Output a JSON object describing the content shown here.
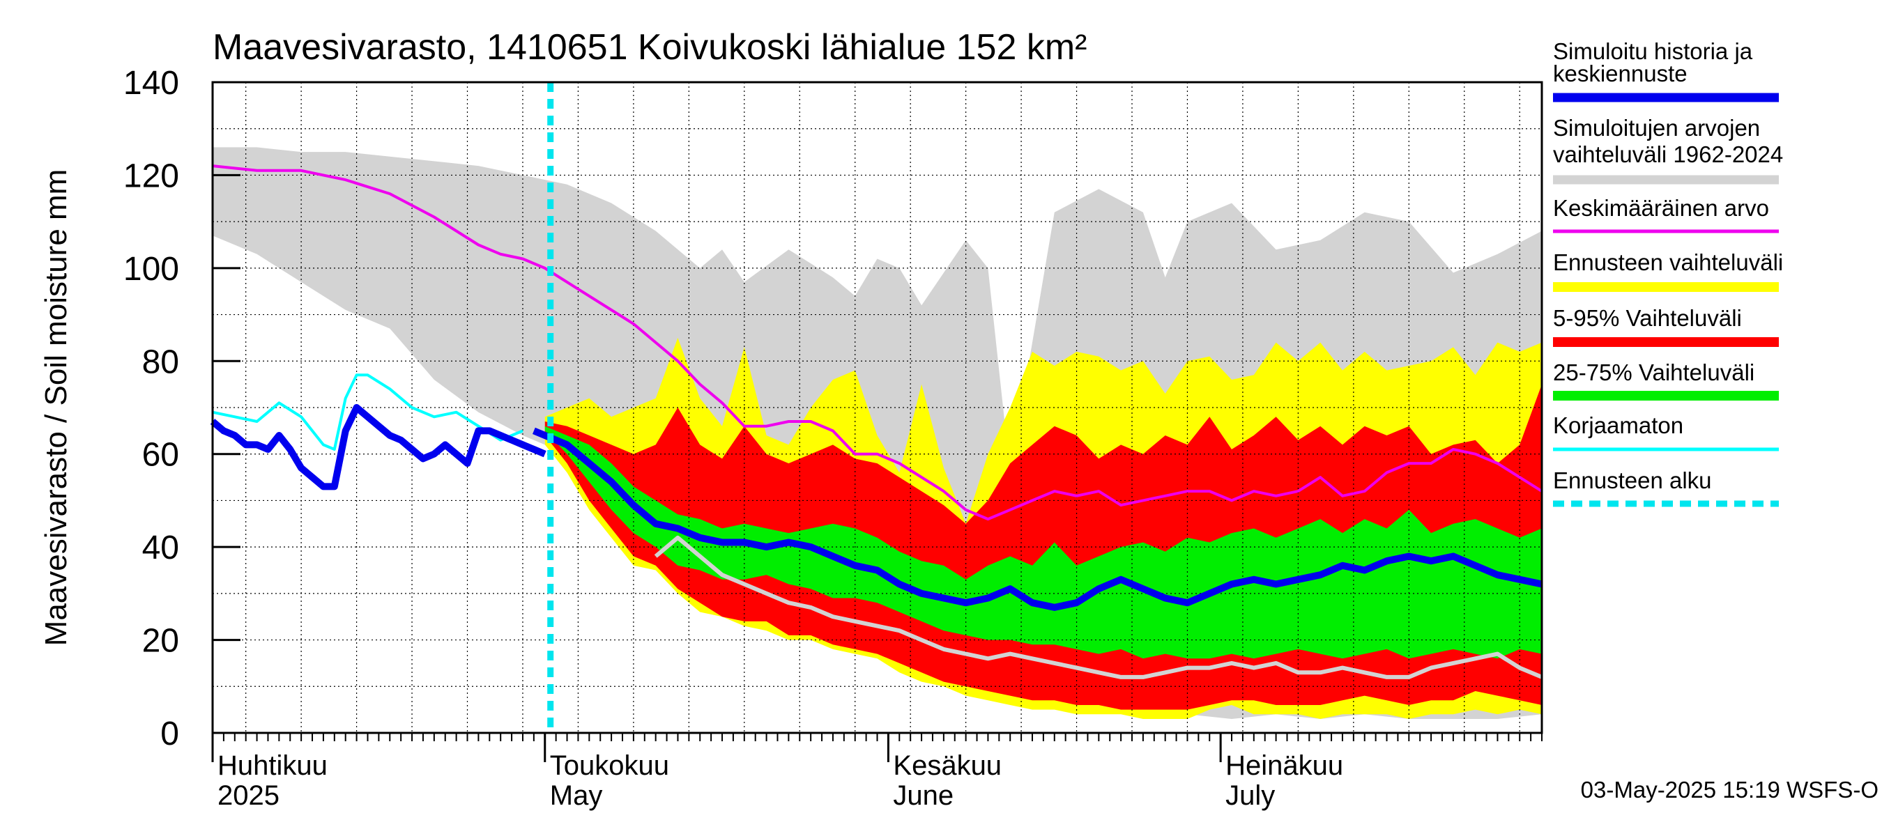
{
  "chart_data": {
    "type": "area",
    "title": "Maavesivarasto, 1410651 Koivukoski lähialue 152 km²",
    "ylabel": "Maavesivarasto / Soil moisture   mm",
    "xlabel": "",
    "ylim": [
      0,
      140
    ],
    "yticks": [
      "0",
      "20",
      "40",
      "60",
      "80",
      "100",
      "120",
      "140"
    ],
    "x_unit": "days since 2025-04-01",
    "xlim": [
      0,
      120
    ],
    "month_labels": [
      {
        "day": 0,
        "fi": "Huhtikuu",
        "en": "2025"
      },
      {
        "day": 30,
        "fi": "Toukokuu",
        "en": "May"
      },
      {
        "day": 61,
        "fi": "Kesäkuu",
        "en": "June"
      },
      {
        "day": 91,
        "fi": "Heinäkuu",
        "en": "July"
      }
    ],
    "forecast_start_day": 30.5,
    "timestamp": "03-May-2025 15:19 WSFS-O",
    "legend": [
      {
        "key": "sim",
        "label_line1": "Simuloitu historia ja",
        "label_line2": "keskiennuste",
        "color": "#0000ee"
      },
      {
        "key": "range",
        "label_line1": "Simuloitujen arvojen",
        "label_line2": "vaihteluväli 1962-2024",
        "color": "#d3d3d3"
      },
      {
        "key": "mean",
        "label_line1": "Keskimääräinen arvo",
        "label_line2": "",
        "color": "#ee00ee"
      },
      {
        "key": "ens",
        "label_line1": "Ennusteen vaihteluväli",
        "label_line2": "",
        "color": "#ffff00"
      },
      {
        "key": "p5_95",
        "label_line1": "5-95% Vaihteluväli",
        "label_line2": "",
        "color": "#ff0000"
      },
      {
        "key": "p25_75",
        "label_line1": "25-75% Vaihteluväli",
        "label_line2": "",
        "color": "#00ee00"
      },
      {
        "key": "raw",
        "label_line1": "Korjaamaton",
        "label_line2": "",
        "color": "#00ffff"
      },
      {
        "key": "start",
        "label_line1": "Ennusteen alku",
        "label_line2": "",
        "color": "#00e5ee"
      }
    ],
    "series": [
      {
        "name": "hist_range_upper",
        "x": [
          0,
          4,
          8,
          12,
          16,
          20,
          24,
          28,
          32,
          36,
          40,
          44,
          46,
          48,
          52,
          56,
          58,
          60,
          62,
          64,
          66,
          68,
          70,
          72,
          74,
          76,
          80,
          84,
          86,
          88,
          92,
          96,
          100,
          104,
          108,
          112,
          116,
          120
        ],
        "values": [
          126,
          126,
          125,
          125,
          124,
          123,
          122,
          120,
          118,
          114,
          108,
          100,
          104,
          97,
          104,
          98,
          94,
          102,
          100,
          92,
          99,
          106,
          100,
          56,
          84,
          112,
          117,
          112,
          98,
          110,
          114,
          104,
          106,
          112,
          110,
          99,
          103,
          108
        ]
      },
      {
        "name": "hist_range_lower",
        "x": [
          0,
          4,
          8,
          12,
          16,
          20,
          24,
          28,
          30,
          34,
          38,
          42,
          46,
          50,
          54,
          58,
          62,
          66,
          70,
          74,
          78,
          84,
          88,
          92,
          96,
          100,
          104,
          108,
          112,
          116,
          120
        ],
        "values": [
          107,
          103,
          97,
          91,
          87,
          76,
          69,
          64,
          62,
          55,
          46,
          38,
          34,
          31,
          26,
          22,
          19,
          15,
          12,
          9,
          7,
          5,
          4,
          3,
          4,
          3,
          4,
          3,
          3,
          3,
          4
        ]
      },
      {
        "name": "ens_upper",
        "x": [
          30,
          32,
          34,
          36,
          38,
          40,
          42,
          44,
          46,
          48,
          50,
          52,
          54,
          56,
          58,
          60,
          62,
          64,
          66,
          68,
          70,
          72,
          74,
          76,
          78,
          80,
          82,
          84,
          86,
          88,
          90,
          92,
          94,
          96,
          98,
          100,
          102,
          104,
          106,
          108,
          110,
          112,
          114,
          116,
          118,
          120
        ],
        "values": [
          68,
          70,
          72,
          68,
          70,
          72,
          85,
          72,
          66,
          83,
          64,
          62,
          70,
          76,
          78,
          64,
          56,
          75,
          57,
          45,
          60,
          70,
          82,
          79,
          82,
          81,
          78,
          80,
          73,
          80,
          81,
          76,
          77,
          84,
          80,
          84,
          78,
          82,
          78,
          79,
          80,
          83,
          77,
          84,
          82,
          84
        ]
      },
      {
        "name": "ens_lower",
        "x": [
          30,
          32,
          34,
          36,
          38,
          40,
          42,
          44,
          46,
          48,
          50,
          52,
          54,
          56,
          58,
          60,
          62,
          64,
          66,
          68,
          70,
          72,
          74,
          76,
          78,
          80,
          82,
          84,
          86,
          88,
          90,
          92,
          94,
          96,
          98,
          100,
          102,
          104,
          106,
          108,
          110,
          112,
          114,
          116,
          118,
          120
        ],
        "values": [
          62,
          56,
          48,
          42,
          36,
          35,
          30,
          26,
          25,
          23,
          22,
          20,
          20,
          18,
          17,
          16,
          13,
          11,
          10,
          8,
          7,
          6,
          5,
          5,
          4,
          4,
          4,
          3,
          3,
          3,
          5,
          6,
          4,
          4,
          4,
          3,
          4,
          4,
          4,
          3,
          4,
          4,
          5,
          4,
          5,
          4
        ]
      },
      {
        "name": "p5_95_upper",
        "x": [
          30,
          32,
          34,
          36,
          38,
          40,
          42,
          44,
          46,
          48,
          50,
          52,
          54,
          56,
          58,
          60,
          62,
          64,
          66,
          68,
          70,
          72,
          74,
          76,
          78,
          80,
          82,
          84,
          86,
          88,
          90,
          92,
          94,
          96,
          98,
          100,
          102,
          104,
          106,
          108,
          110,
          112,
          114,
          116,
          118,
          120
        ],
        "values": [
          67,
          66,
          64,
          62,
          60,
          62,
          70,
          62,
          59,
          66,
          60,
          58,
          60,
          62,
          59,
          58,
          55,
          52,
          49,
          45,
          50,
          58,
          62,
          66,
          64,
          59,
          62,
          60,
          64,
          62,
          68,
          61,
          64,
          68,
          63,
          66,
          62,
          66,
          64,
          66,
          60,
          62,
          63,
          58,
          62,
          75
        ]
      },
      {
        "name": "p5_95_lower",
        "x": [
          30,
          32,
          34,
          36,
          38,
          40,
          42,
          44,
          46,
          48,
          50,
          52,
          54,
          56,
          58,
          60,
          62,
          64,
          66,
          68,
          70,
          72,
          74,
          76,
          78,
          80,
          82,
          84,
          86,
          88,
          90,
          92,
          94,
          96,
          98,
          100,
          102,
          104,
          106,
          108,
          110,
          112,
          114,
          116,
          118,
          120
        ],
        "values": [
          64,
          58,
          50,
          44,
          38,
          36,
          31,
          28,
          25,
          24,
          24,
          21,
          21,
          19,
          18,
          17,
          15,
          13,
          11,
          10,
          9,
          8,
          7,
          7,
          6,
          6,
          5,
          5,
          5,
          5,
          6,
          7,
          7,
          6,
          6,
          6,
          7,
          8,
          7,
          6,
          7,
          7,
          9,
          8,
          7,
          6
        ]
      },
      {
        "name": "p25_75_upper",
        "x": [
          30,
          32,
          34,
          36,
          38,
          40,
          42,
          44,
          46,
          48,
          50,
          52,
          54,
          56,
          58,
          60,
          62,
          64,
          66,
          68,
          70,
          72,
          74,
          76,
          78,
          80,
          82,
          84,
          86,
          88,
          90,
          92,
          94,
          96,
          98,
          100,
          102,
          104,
          106,
          108,
          110,
          112,
          114,
          116,
          118,
          120
        ],
        "values": [
          66,
          64,
          62,
          58,
          53,
          50,
          47,
          46,
          44,
          45,
          44,
          43,
          44,
          45,
          44,
          42,
          39,
          37,
          36,
          33,
          36,
          38,
          36,
          41,
          36,
          38,
          40,
          41,
          39,
          42,
          41,
          43,
          44,
          42,
          44,
          46,
          43,
          46,
          44,
          48,
          43,
          45,
          46,
          44,
          42,
          44
        ]
      },
      {
        "name": "p25_75_lower",
        "x": [
          30,
          32,
          34,
          36,
          38,
          40,
          42,
          44,
          46,
          48,
          50,
          52,
          54,
          56,
          58,
          60,
          62,
          64,
          66,
          68,
          70,
          72,
          74,
          76,
          78,
          80,
          82,
          84,
          86,
          88,
          90,
          92,
          94,
          96,
          98,
          100,
          102,
          104,
          106,
          108,
          110,
          112,
          114,
          116,
          118,
          120
        ],
        "values": [
          65,
          60,
          54,
          48,
          43,
          40,
          36,
          35,
          33,
          33,
          34,
          32,
          31,
          29,
          29,
          28,
          26,
          24,
          22,
          21,
          20,
          20,
          19,
          19,
          18,
          17,
          18,
          16,
          17,
          16,
          16,
          17,
          16,
          17,
          18,
          17,
          16,
          17,
          18,
          16,
          17,
          18,
          17,
          16,
          18,
          17
        ]
      },
      {
        "name": "mean",
        "x": [
          0,
          4,
          8,
          12,
          16,
          20,
          24,
          26,
          28,
          30,
          34,
          38,
          40,
          42,
          44,
          46,
          48,
          50,
          52,
          54,
          56,
          58,
          60,
          62,
          64,
          66,
          68,
          70,
          72,
          74,
          76,
          78,
          80,
          82,
          84,
          86,
          88,
          90,
          92,
          94,
          96,
          98,
          100,
          102,
          104,
          106,
          108,
          110,
          112,
          114,
          116,
          118,
          120
        ],
        "values": [
          122,
          121,
          121,
          119,
          116,
          111,
          105,
          103,
          102,
          100,
          94,
          88,
          84,
          80,
          75,
          71,
          66,
          66,
          67,
          67,
          65,
          60,
          60,
          58,
          55,
          52,
          48,
          46,
          48,
          50,
          52,
          51,
          52,
          49,
          50,
          51,
          52,
          52,
          50,
          52,
          51,
          52,
          55,
          51,
          52,
          56,
          58,
          58,
          61,
          60,
          58,
          55,
          52
        ]
      },
      {
        "name": "sim_history",
        "x": [
          0,
          1,
          2,
          3,
          4,
          5,
          6,
          7,
          8,
          9,
          10,
          11,
          12,
          13,
          14,
          15,
          16,
          17,
          18,
          19,
          20,
          21,
          22,
          23,
          24,
          25,
          26,
          27,
          28,
          29,
          30
        ],
        "values": [
          67,
          65,
          64,
          62,
          62,
          61,
          64,
          61,
          57,
          55,
          53,
          53,
          65,
          70,
          68,
          66,
          64,
          63,
          61,
          59,
          60,
          62,
          60,
          58,
          65,
          65,
          64,
          63,
          62,
          61,
          60
        ]
      },
      {
        "name": "sim_median",
        "x": [
          29,
          30,
          32,
          34,
          36,
          38,
          40,
          42,
          44,
          46,
          48,
          50,
          52,
          54,
          56,
          58,
          60,
          62,
          64,
          66,
          68,
          70,
          72,
          74,
          76,
          78,
          80,
          82,
          84,
          86,
          88,
          90,
          92,
          94,
          96,
          98,
          100,
          102,
          104,
          106,
          108,
          110,
          112,
          114,
          116,
          118,
          120
        ],
        "values": [
          65,
          64,
          62,
          58,
          54,
          49,
          45,
          44,
          42,
          41,
          41,
          40,
          41,
          40,
          38,
          36,
          35,
          32,
          30,
          29,
          28,
          29,
          31,
          28,
          27,
          28,
          31,
          33,
          31,
          29,
          28,
          30,
          32,
          33,
          32,
          33,
          34,
          36,
          35,
          37,
          38,
          37,
          38,
          36,
          34,
          33,
          32
        ]
      },
      {
        "name": "raw_uncorrected",
        "x": [
          0,
          2,
          4,
          6,
          8,
          10,
          11,
          12,
          13,
          14,
          16,
          18,
          20,
          22,
          24,
          26,
          28
        ],
        "values": [
          69,
          68,
          67,
          71,
          68,
          62,
          61,
          72,
          77,
          77,
          74,
          70,
          68,
          69,
          66,
          63,
          65
        ]
      },
      {
        "name": "median_low_gray",
        "x": [
          40,
          42,
          44,
          46,
          48,
          50,
          52,
          54,
          56,
          58,
          60,
          62,
          64,
          66,
          68,
          70,
          72,
          74,
          76,
          78,
          80,
          82,
          84,
          86,
          88,
          90,
          92,
          94,
          96,
          98,
          100,
          102,
          104,
          106,
          108,
          110,
          112,
          114,
          116,
          118,
          120
        ],
        "values": [
          38,
          42,
          38,
          34,
          32,
          30,
          28,
          27,
          25,
          24,
          23,
          22,
          20,
          18,
          17,
          16,
          17,
          16,
          15,
          14,
          13,
          12,
          12,
          13,
          14,
          14,
          15,
          14,
          15,
          13,
          13,
          14,
          13,
          12,
          12,
          14,
          15,
          16,
          17,
          14,
          12
        ]
      }
    ]
  }
}
